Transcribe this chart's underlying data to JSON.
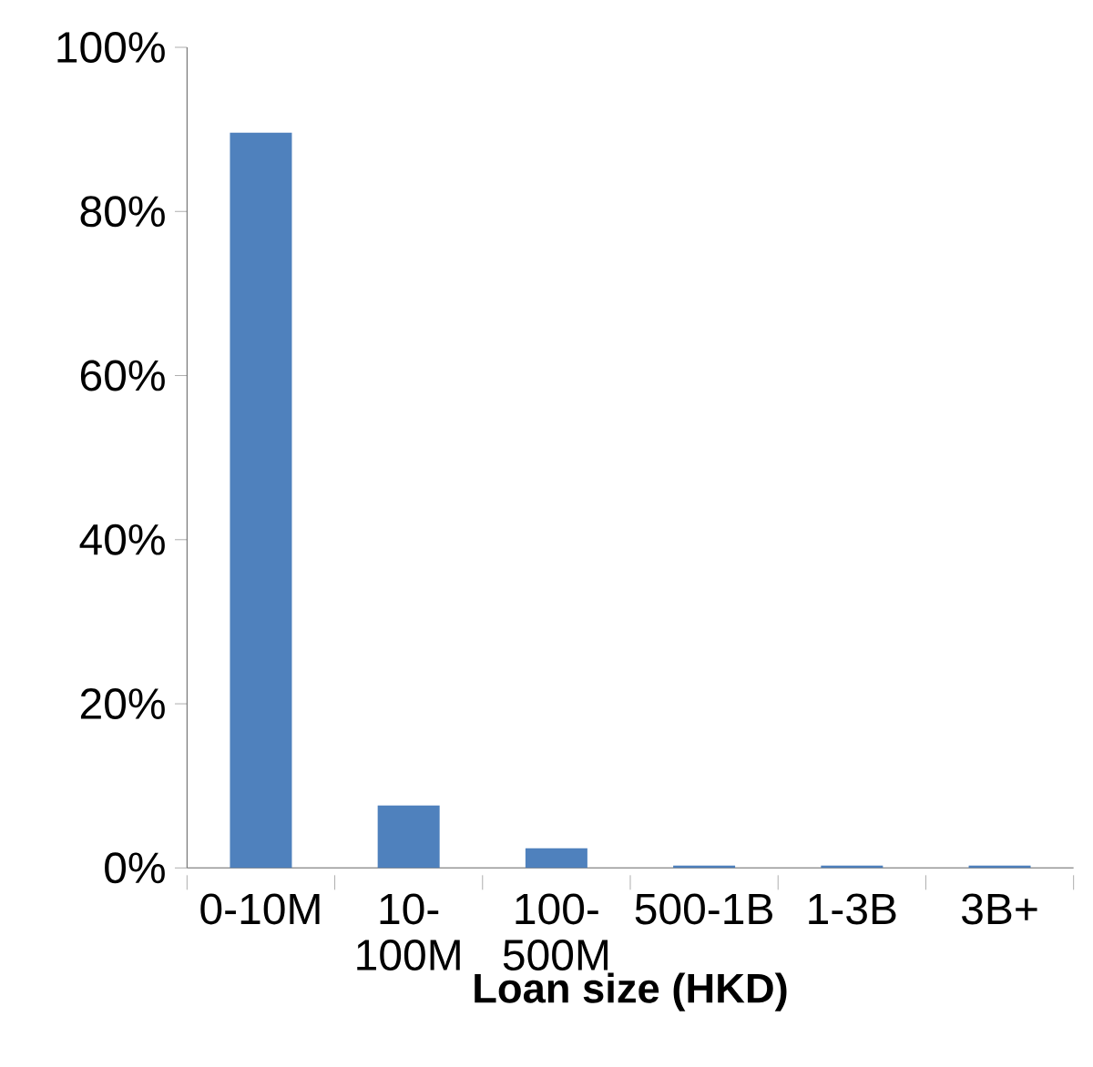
{
  "chart_data": {
    "type": "bar",
    "xlabel": "Loan size (HKD)",
    "categories": [
      "0-10M",
      "10-100M",
      "100-500M",
      "500-1B",
      "1-3B",
      "3B+"
    ],
    "values": [
      89.6,
      7.6,
      2.4,
      0.3,
      0.3,
      0.3
    ],
    "color": "#4f81bd",
    "ylim": [
      0,
      100
    ],
    "yticks": [
      {
        "value": 0,
        "label": "0%"
      },
      {
        "value": 20,
        "label": "20%"
      },
      {
        "value": 40,
        "label": "40%"
      },
      {
        "value": 60,
        "label": "60%"
      },
      {
        "value": 80,
        "label": "80%"
      },
      {
        "value": 100,
        "label": "100%"
      }
    ],
    "grid": false
  }
}
